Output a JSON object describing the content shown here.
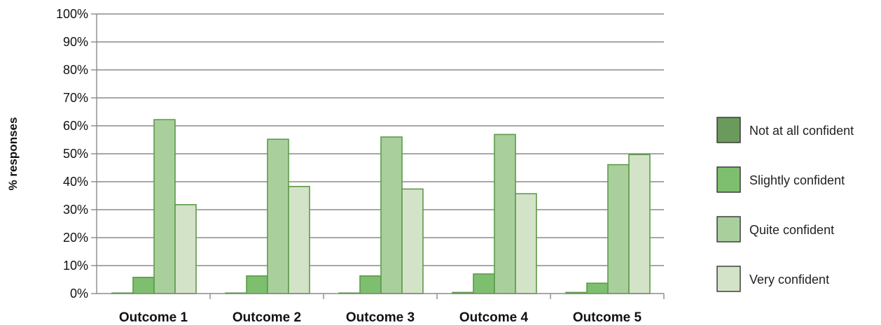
{
  "chart_data": {
    "type": "bar",
    "title": "",
    "xlabel": "",
    "ylabel": "% responses",
    "ylim": [
      0,
      100
    ],
    "y_ticks": [
      "0%",
      "10%",
      "20%",
      "30%",
      "40%",
      "50%",
      "60%",
      "70%",
      "80%",
      "90%",
      "100%"
    ],
    "grid": true,
    "legend_position": "right",
    "categories": [
      "Outcome 1",
      "Outcome 2",
      "Outcome 3",
      "Outcome 4",
      "Outcome 5"
    ],
    "series": [
      {
        "name": "Not at all confident",
        "color": "#6b9b5c",
        "values": [
          0.2,
          0.2,
          0.2,
          0.4,
          0.4
        ]
      },
      {
        "name": "Slightly confident",
        "color": "#7dbf6e",
        "values": [
          5.8,
          6.3,
          6.3,
          7.0,
          3.7
        ]
      },
      {
        "name": "Quite confident",
        "color": "#a9d09c",
        "values": [
          62.2,
          55.2,
          56.0,
          56.9,
          46.1
        ]
      },
      {
        "name": "Very confident",
        "color": "#d3e3c8",
        "values": [
          31.8,
          38.3,
          37.4,
          35.7,
          49.7
        ]
      }
    ],
    "bar_stroke": "#5e9a4a",
    "axis_color": "#8a8a8a",
    "grid_color": "#8a8a8a"
  }
}
